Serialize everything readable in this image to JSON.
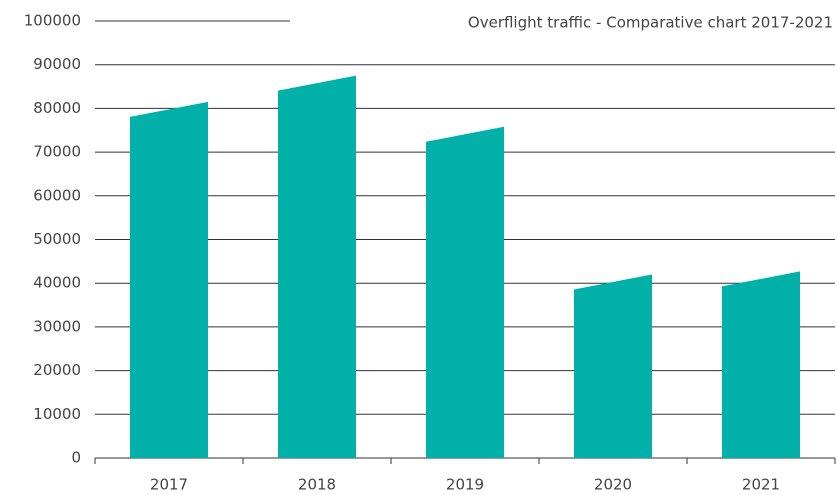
{
  "chart_data": {
    "type": "bar",
    "title": "Overflight traffic - Comparative chart 2017-2021",
    "categories": [
      "2017",
      "2018",
      "2019",
      "2020",
      "2021"
    ],
    "values": [
      81500,
      87500,
      75800,
      42000,
      42700
    ],
    "color": "#00b0a9",
    "ylim": [
      0,
      100000
    ],
    "yticks": [
      0,
      10000,
      20000,
      30000,
      40000,
      50000,
      60000,
      70000,
      80000,
      90000,
      100000
    ],
    "grid": true
  }
}
